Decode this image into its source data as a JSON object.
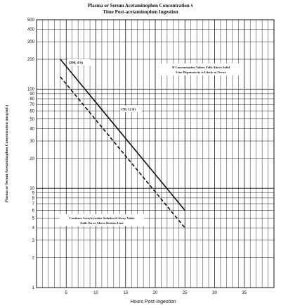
{
  "chart_data": {
    "type": "line",
    "title_line1": "Plasma or Serum Acetaminophen Concentration v",
    "title_line2": "Time Post-acetaminophen Ingestion",
    "xlabel": "Hours Post-Ingestion",
    "ylabel": "Plasma or Serum Acetaminophen Concentration (mcg/mL)",
    "xlim": [
      0,
      40
    ],
    "ylim": [
      1,
      500
    ],
    "y_scale": "log",
    "grid": true,
    "x_ticks": [
      5,
      10,
      15,
      20,
      25,
      30,
      35
    ],
    "y_ticks": [
      1,
      2,
      3,
      4,
      5,
      6,
      7,
      8,
      9,
      10,
      20,
      30,
      40,
      50,
      60,
      70,
      80,
      90,
      100,
      200,
      300,
      400,
      500
    ],
    "series": [
      {
        "style": "solid",
        "x": [
          4,
          25
        ],
        "y": [
          200,
          6
        ],
        "color": "#111111"
      },
      {
        "style": "dashed",
        "x": [
          4,
          25
        ],
        "y": [
          133,
          4
        ],
        "color": "#111111"
      }
    ],
    "point_labels": [
      {
        "text": "(200, 4 h)",
        "x": 4,
        "y": 200
      },
      {
        "text": "(50, 12 h)",
        "x": 12,
        "y": 50
      }
    ],
    "annotations": [
      {
        "lines": [
          "If Concentration Values Falls Above Solid",
          "Line Hepatoxicity is Likely to Occur"
        ]
      },
      {
        "lines": [
          "Continue Acetylcysteine Solution if Assay Value",
          "Falls On or Above Broken Line"
        ]
      }
    ]
  }
}
